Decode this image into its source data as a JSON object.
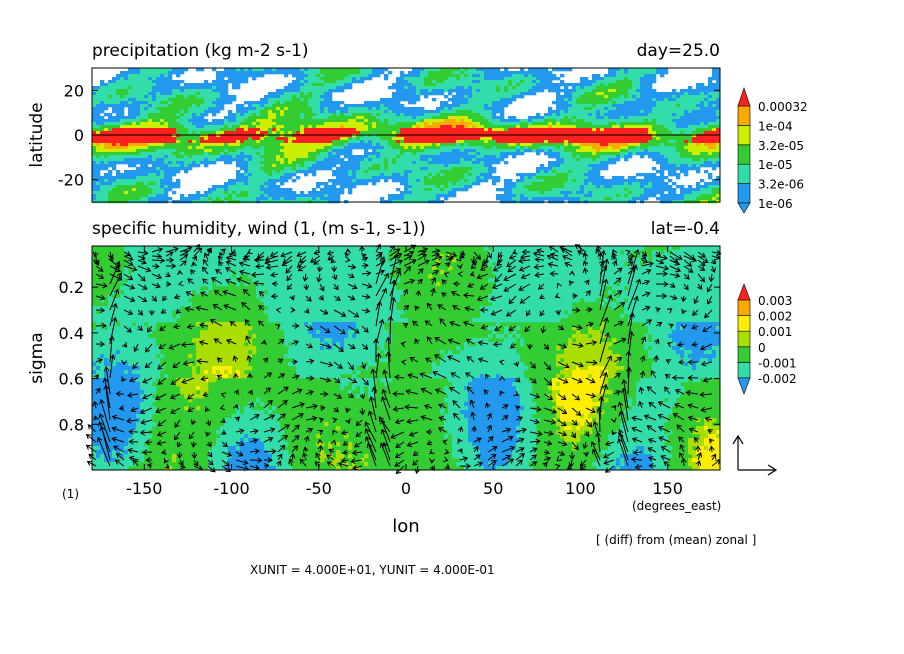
{
  "chart_data": [
    {
      "type": "heatmap",
      "title": "precipitation (kg m-2 s-1)",
      "title_right": "day=25.0",
      "ylabel": "latitude",
      "xlim": [
        -180,
        180
      ],
      "ylim": [
        -30,
        30
      ],
      "yticks": [
        20,
        0,
        -20
      ],
      "colorbar": {
        "levels": [
          "1e-06",
          "3.2e-06",
          "1e-05",
          "3.2e-05",
          "1e-04",
          "0.00032"
        ],
        "colors": [
          "#2299ee",
          "#33ddaa",
          "#33cc33",
          "#ccee00",
          "#ffaa00",
          "#ff2020"
        ]
      }
    },
    {
      "type": "heatmap",
      "title": "specific humidity, wind (1, (m s-1, s-1))",
      "title_right": "lat=-0.4",
      "xlabel": "lon",
      "xunits": "(degrees_east)",
      "ylabel": "sigma",
      "units_label": "(1)",
      "xlim": [
        -180,
        180
      ],
      "ylim": [
        1.0,
        0.02
      ],
      "xticks": [
        -150,
        -100,
        -50,
        0,
        50,
        100,
        150
      ],
      "yticks": [
        0.2,
        0.4,
        0.6,
        0.8
      ],
      "colorbar": {
        "levels": [
          "-0.002",
          "-0.001",
          "0",
          "0.001",
          "0.002",
          "0.003"
        ],
        "colors": [
          "#2299ee",
          "#33ddaa",
          "#33cc33",
          "#aadd00",
          "#ffee00",
          "#ffaa00",
          "#ff2020"
        ]
      },
      "annotation": "[ (diff) from (mean) zonal ]",
      "vector_scale": "XUNIT = 4.000E+01, YUNIT = 4.000E-01"
    }
  ]
}
